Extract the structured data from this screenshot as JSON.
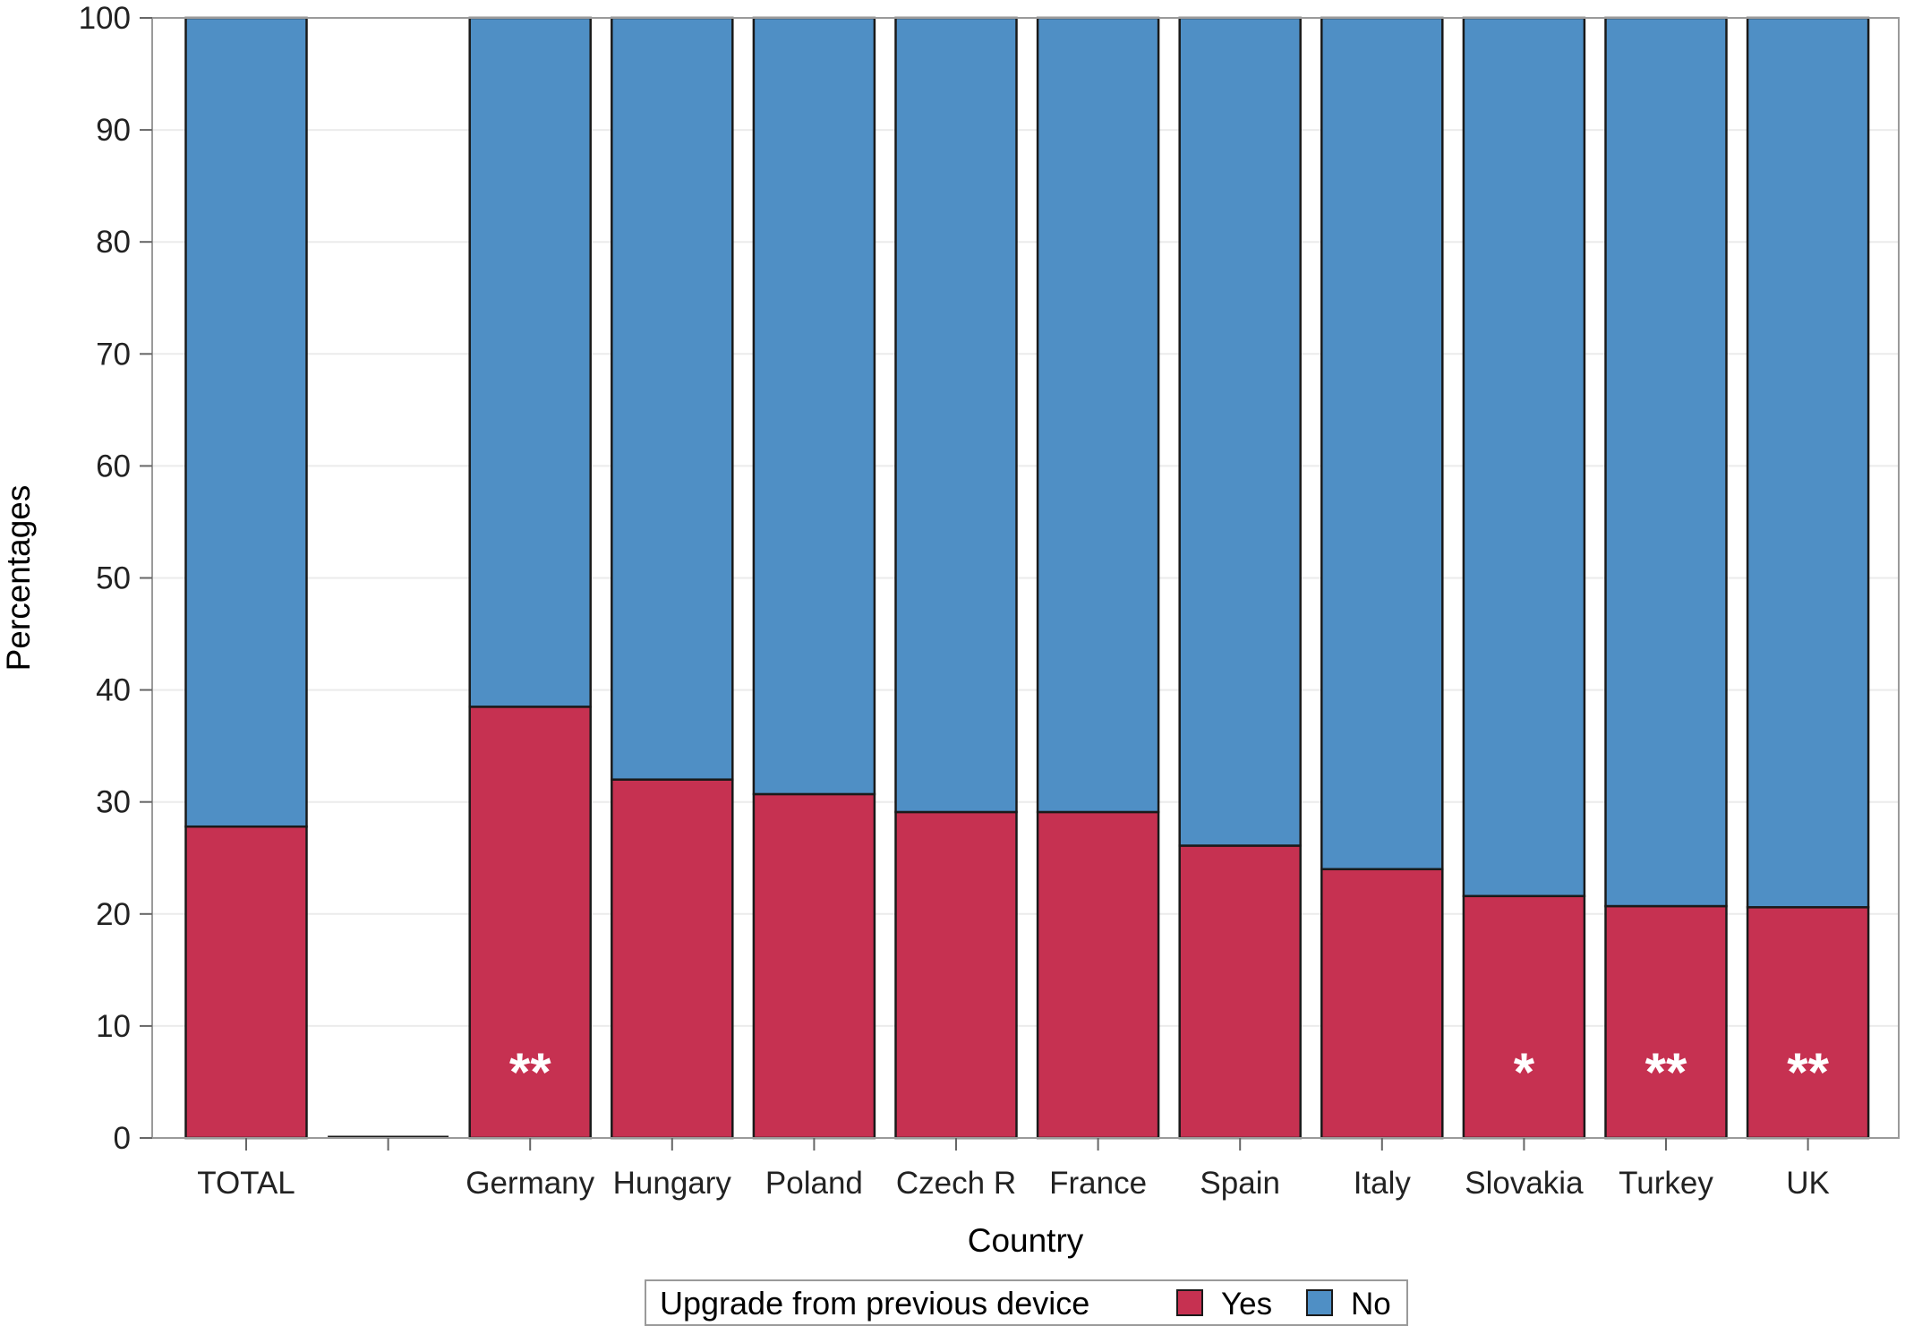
{
  "chart_data": {
    "type": "bar",
    "stacked": true,
    "categories": [
      "TOTAL",
      "",
      "Germany",
      "Hungary",
      "Poland",
      "Czech R",
      "France",
      "Spain",
      "Italy",
      "Slovakia",
      "Turkey",
      "UK"
    ],
    "series": [
      {
        "name": "Yes",
        "color": "#c63151",
        "values": [
          27.8,
          0,
          38.5,
          32.0,
          30.7,
          29.1,
          29.1,
          26.1,
          24.0,
          21.6,
          20.7,
          20.6
        ]
      },
      {
        "name": "No",
        "color": "#4f8fc5",
        "values": [
          72.2,
          0,
          61.5,
          68.0,
          69.3,
          70.9,
          70.9,
          73.9,
          76.0,
          78.4,
          79.3,
          79.4
        ]
      }
    ],
    "annotations": [
      "",
      "",
      "**",
      "",
      "",
      "",
      "",
      "",
      "",
      "*",
      "**",
      "**"
    ],
    "xlabel": "Country",
    "ylabel": "Percentages",
    "ylim": [
      0,
      100
    ],
    "yticks": [
      "0",
      "10",
      "20",
      "30",
      "40",
      "50",
      "60",
      "70",
      "80",
      "90",
      "100"
    ],
    "grid": true,
    "legend": {
      "title": "Upgrade from previous device",
      "entries": [
        "Yes",
        "No"
      ],
      "placement": "bottom"
    }
  }
}
